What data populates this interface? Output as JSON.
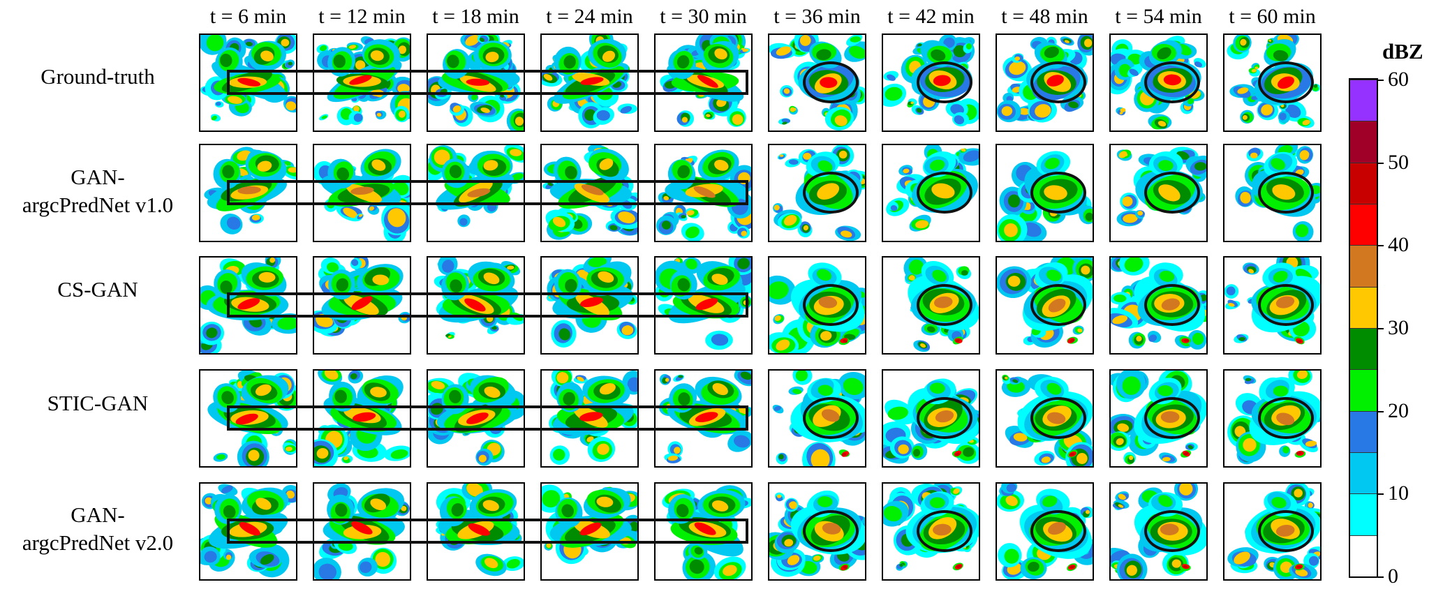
{
  "columns": [
    "t = 6 min",
    "t = 12 min",
    "t = 18 min",
    "t = 24 min",
    "t = 30 min",
    "t = 36 min",
    "t = 42 min",
    "t = 48 min",
    "t = 54 min",
    "t = 60 min"
  ],
  "rows": [
    {
      "label_lines": [
        "Ground-truth"
      ]
    },
    {
      "label_lines": [
        "GAN-",
        "argcPredNet v1.0"
      ]
    },
    {
      "label_lines": [
        "CS-GAN"
      ]
    },
    {
      "label_lines": [
        "STIC-GAN"
      ]
    },
    {
      "label_lines": [
        "GAN-",
        "argcPredNet v2.0"
      ]
    }
  ],
  "colorbar": {
    "unit": "dBZ",
    "tick_labels": [
      "60",
      "50",
      "40",
      "30",
      "20",
      "10",
      "0"
    ],
    "colors": [
      "#ffffff",
      "#00ffff",
      "#00c8f0",
      "#2878e6",
      "#00f000",
      "#008c00",
      "#ffc800",
      "#d27820",
      "#ff0000",
      "#c80000",
      "#a00028",
      "#9632ff"
    ]
  }
}
